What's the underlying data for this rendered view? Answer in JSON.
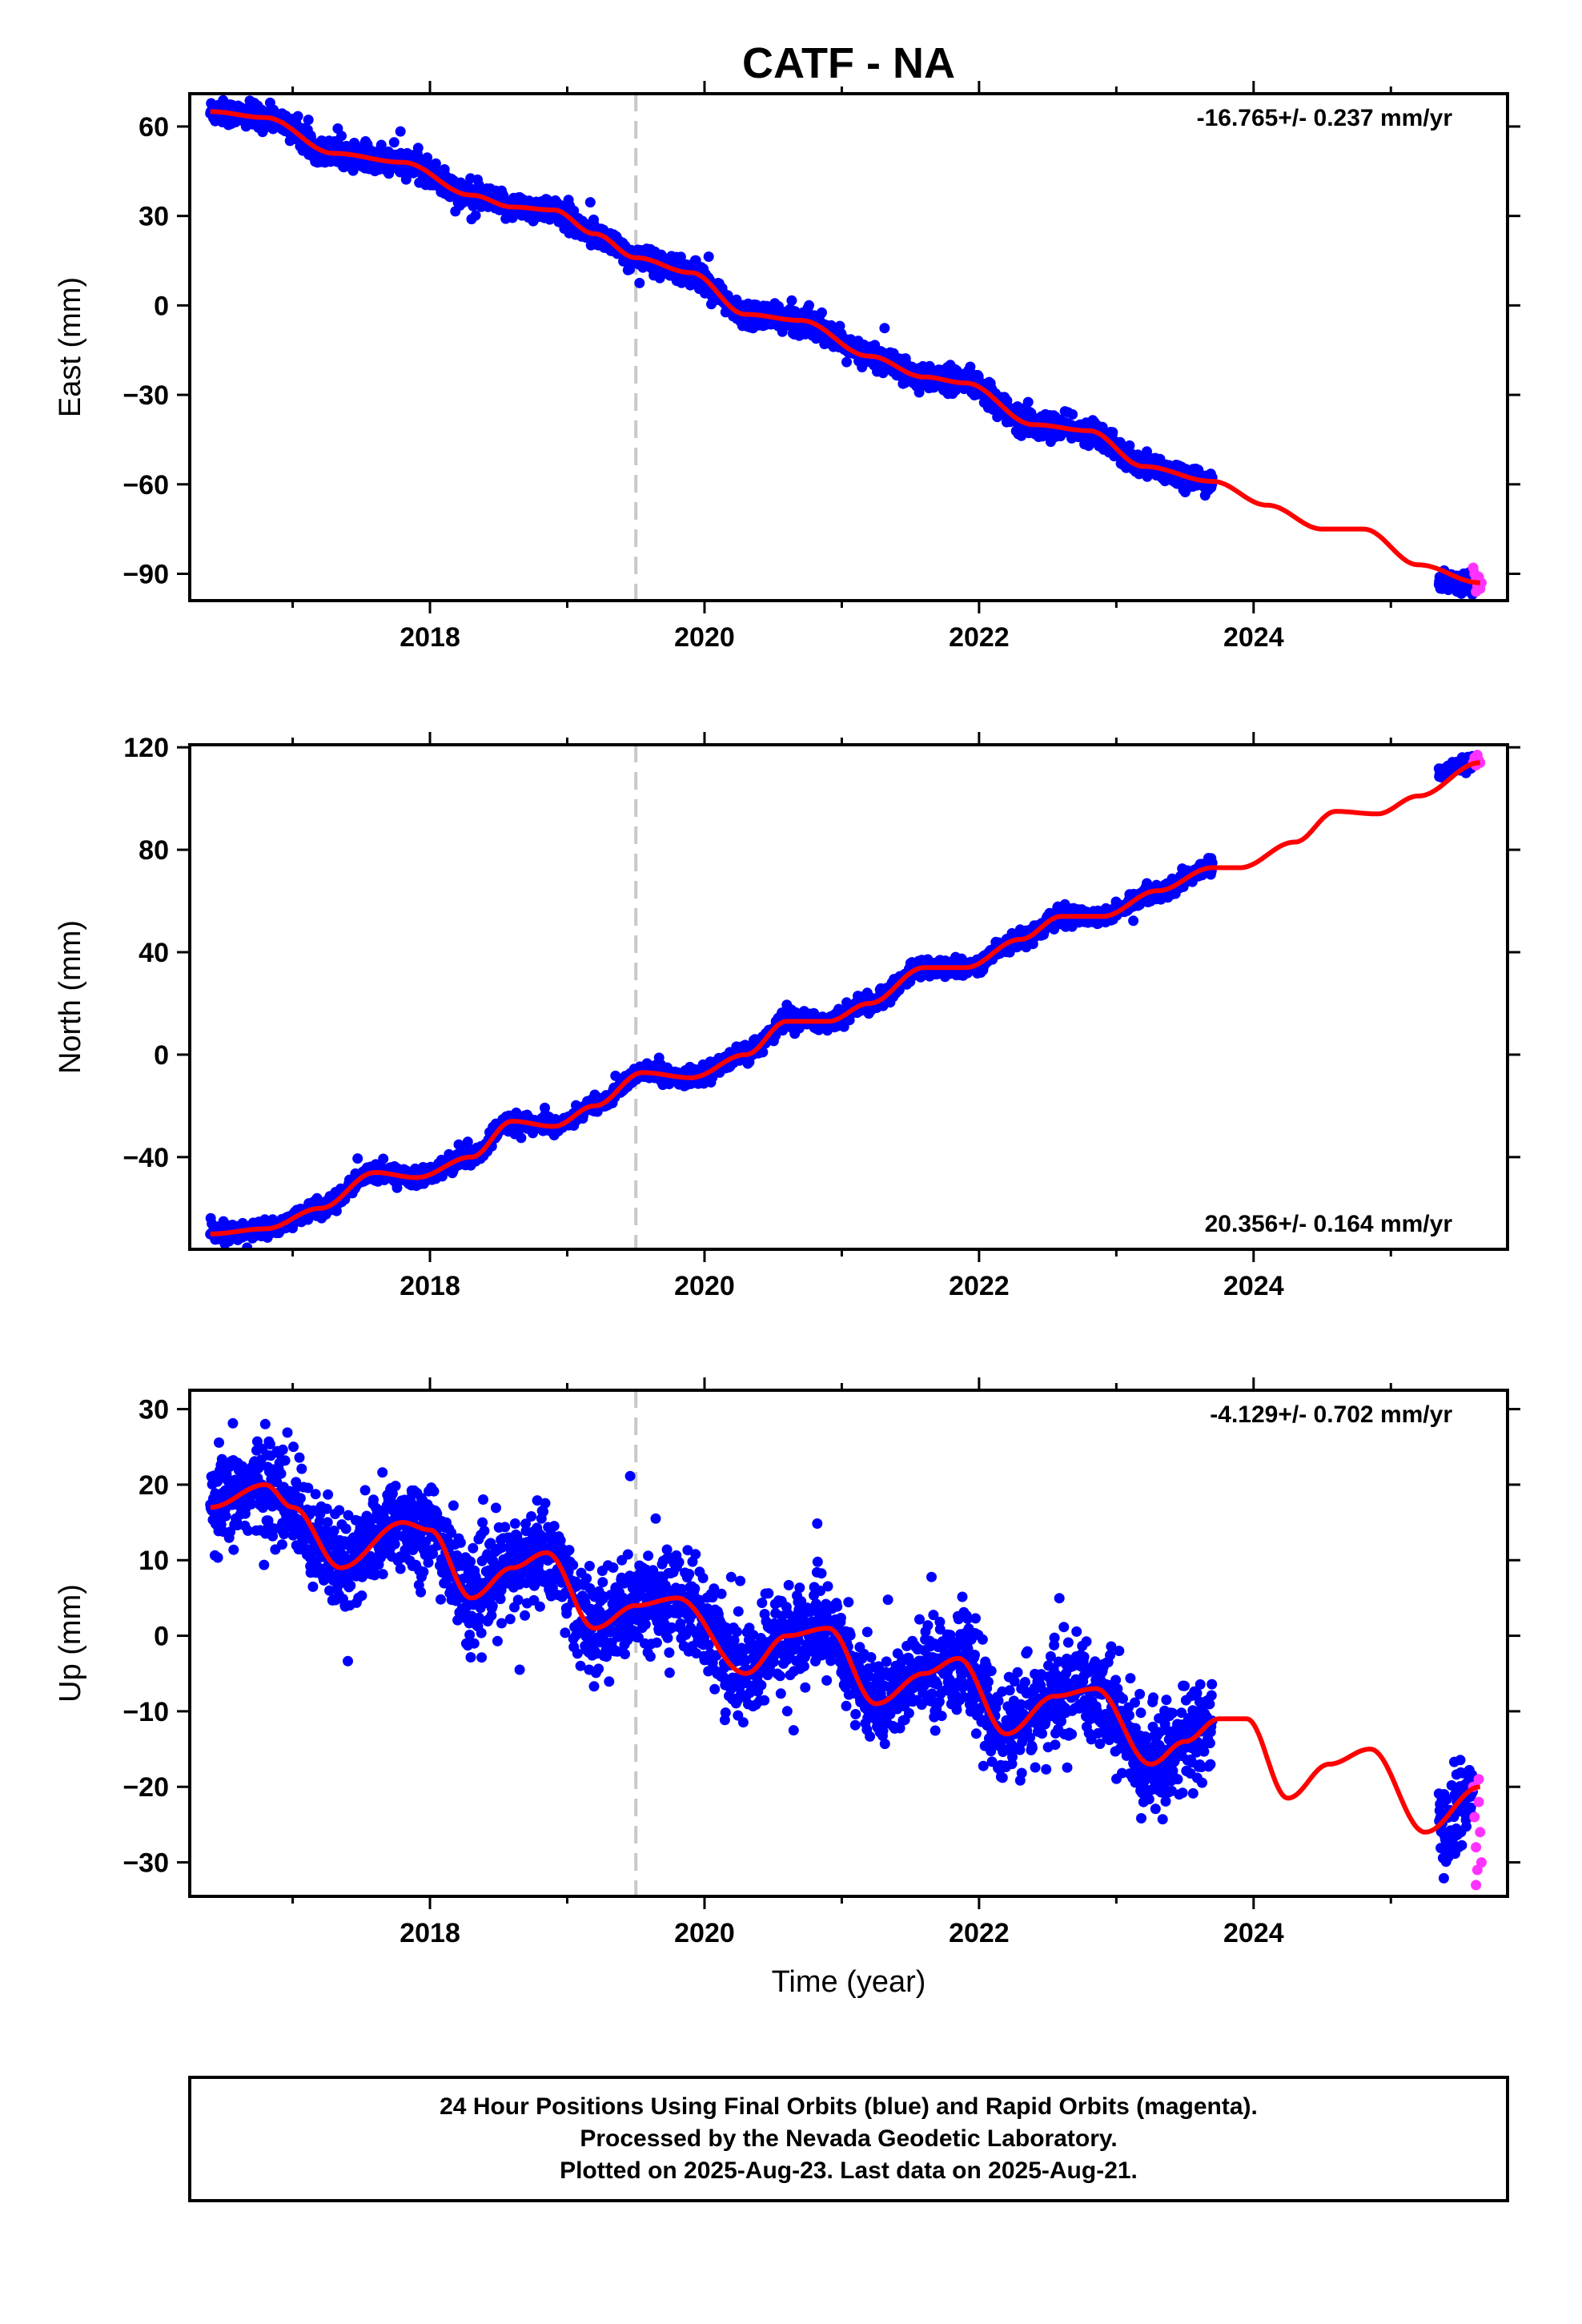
{
  "title": "CATF - NA",
  "colors": {
    "final_orbits": "#0000ff",
    "rapid_orbits": "#ff33ff",
    "model": "#ff0000",
    "break_line": "#c8c8c8",
    "frame": "#000000"
  },
  "x_tick_labels": [
    "2018",
    "2020",
    "2022",
    "2024"
  ],
  "xlabel": "Time (year)",
  "footer": {
    "line1": "24 Hour Positions Using Final Orbits (blue) and Rapid Orbits (magenta).",
    "line2": "Processed by the Nevada Geodetic Laboratory.",
    "line3": "Plotted on 2025-Aug-23. Last data on 2025-Aug-21."
  },
  "chart_data": [
    {
      "type": "scatter",
      "component": "east",
      "ylabel": "East (mm)",
      "ylim": [
        -99,
        71
      ],
      "xlim": [
        2016.25,
        2025.85
      ],
      "yticks": [
        60,
        30,
        0,
        -30,
        -60,
        -90
      ],
      "rate_text": "-16.765+/- 0.237 mm/yr",
      "rate_position": "top-right",
      "equipment_change_year": 2019.5,
      "series": [
        {
          "kind": "final_orbits_daily",
          "x_range": [
            2016.4,
            2023.7
          ],
          "key_points": [
            [
              2016.4,
              65
            ],
            [
              2016.8,
              63
            ],
            [
              2017.3,
              51
            ],
            [
              2017.8,
              48
            ],
            [
              2018.3,
              37
            ],
            [
              2018.6,
              33
            ],
            [
              2018.9,
              32
            ],
            [
              2019.2,
              24
            ],
            [
              2019.5,
              16
            ],
            [
              2019.9,
              11
            ],
            [
              2020.3,
              -3
            ],
            [
              2020.7,
              -5
            ],
            [
              2021.2,
              -17
            ],
            [
              2021.6,
              -24
            ],
            [
              2021.9,
              -26
            ],
            [
              2022.4,
              -40
            ],
            [
              2022.8,
              -42
            ],
            [
              2023.2,
              -54
            ],
            [
              2023.7,
              -59
            ]
          ],
          "scatter_mm": 2.0
        },
        {
          "kind": "final_orbits_daily",
          "x_range": [
            2025.35,
            2025.6
          ],
          "key_points": [
            [
              2025.35,
              -93
            ],
            [
              2025.6,
              -93
            ]
          ],
          "scatter_mm": 1.5
        },
        {
          "kind": "rapid_orbits_daily",
          "points": [
            [
              2025.6,
              -88
            ],
            [
              2025.61,
              -90
            ],
            [
              2025.62,
              -92
            ],
            [
              2025.63,
              -94
            ],
            [
              2025.64,
              -91
            ],
            [
              2025.65,
              -95
            ],
            [
              2025.66,
              -93
            ],
            [
              2025.62,
              -96
            ]
          ]
        },
        {
          "kind": "model",
          "points": [
            [
              2016.4,
              65
            ],
            [
              2016.8,
              63
            ],
            [
              2017.3,
              51
            ],
            [
              2017.8,
              48
            ],
            [
              2018.3,
              37
            ],
            [
              2018.6,
              33
            ],
            [
              2018.9,
              32
            ],
            [
              2019.2,
              24
            ],
            [
              2019.5,
              16
            ],
            [
              2019.9,
              11
            ],
            [
              2020.3,
              -3
            ],
            [
              2020.7,
              -5
            ],
            [
              2021.2,
              -17
            ],
            [
              2021.6,
              -24
            ],
            [
              2021.9,
              -26
            ],
            [
              2022.4,
              -40
            ],
            [
              2022.8,
              -42
            ],
            [
              2023.2,
              -54
            ],
            [
              2023.7,
              -59
            ],
            [
              2024.1,
              -67
            ],
            [
              2024.5,
              -75
            ],
            [
              2024.8,
              -75
            ],
            [
              2025.2,
              -87
            ],
            [
              2025.65,
              -93
            ]
          ]
        }
      ]
    },
    {
      "type": "scatter",
      "component": "north",
      "ylabel": "North (mm)",
      "ylim": [
        -76,
        121
      ],
      "xlim": [
        2016.25,
        2025.85
      ],
      "yticks": [
        120,
        80,
        40,
        0,
        -40
      ],
      "rate_text": "20.356+/- 0.164 mm/yr",
      "rate_position": "bottom-right",
      "equipment_change_year": 2019.5,
      "series": [
        {
          "kind": "final_orbits_daily",
          "x_range": [
            2016.4,
            2023.7
          ],
          "key_points": [
            [
              2016.4,
              -70
            ],
            [
              2016.8,
              -68
            ],
            [
              2017.2,
              -60
            ],
            [
              2017.6,
              -46
            ],
            [
              2017.9,
              -48
            ],
            [
              2018.3,
              -40
            ],
            [
              2018.6,
              -26
            ],
            [
              2018.9,
              -28
            ],
            [
              2019.2,
              -20
            ],
            [
              2019.55,
              -7
            ],
            [
              2019.9,
              -9
            ],
            [
              2020.3,
              0
            ],
            [
              2020.6,
              13
            ],
            [
              2020.9,
              13
            ],
            [
              2021.2,
              20
            ],
            [
              2021.6,
              34
            ],
            [
              2021.9,
              34
            ],
            [
              2022.3,
              45
            ],
            [
              2022.6,
              54
            ],
            [
              2022.9,
              54
            ],
            [
              2023.3,
              64
            ],
            [
              2023.7,
              73
            ]
          ],
          "scatter_mm": 1.6
        },
        {
          "kind": "final_orbits_daily",
          "x_range": [
            2025.35,
            2025.6
          ],
          "key_points": [
            [
              2025.35,
              110
            ],
            [
              2025.6,
              114
            ]
          ],
          "scatter_mm": 1.2
        },
        {
          "kind": "rapid_orbits_daily",
          "points": [
            [
              2025.6,
              114
            ],
            [
              2025.61,
              116
            ],
            [
              2025.62,
              113
            ],
            [
              2025.63,
              117
            ],
            [
              2025.64,
              115
            ],
            [
              2025.65,
              114
            ]
          ]
        },
        {
          "kind": "model",
          "points": [
            [
              2016.4,
              -70
            ],
            [
              2016.8,
              -68
            ],
            [
              2017.2,
              -60
            ],
            [
              2017.6,
              -46
            ],
            [
              2017.9,
              -48
            ],
            [
              2018.3,
              -40
            ],
            [
              2018.6,
              -26
            ],
            [
              2018.9,
              -28
            ],
            [
              2019.2,
              -20
            ],
            [
              2019.55,
              -7
            ],
            [
              2019.9,
              -9
            ],
            [
              2020.3,
              0
            ],
            [
              2020.6,
              13
            ],
            [
              2020.9,
              13
            ],
            [
              2021.2,
              20
            ],
            [
              2021.6,
              34
            ],
            [
              2021.9,
              34
            ],
            [
              2022.3,
              45
            ],
            [
              2022.6,
              54
            ],
            [
              2022.9,
              54
            ],
            [
              2023.3,
              64
            ],
            [
              2023.7,
              73
            ],
            [
              2023.9,
              73
            ],
            [
              2024.3,
              83
            ],
            [
              2024.6,
              95
            ],
            [
              2024.9,
              94
            ],
            [
              2025.2,
              101
            ],
            [
              2025.65,
              114
            ]
          ]
        }
      ]
    },
    {
      "type": "scatter",
      "component": "up",
      "ylabel": "Up (mm)",
      "ylim": [
        -34.5,
        32.5
      ],
      "xlim": [
        2016.25,
        2025.85
      ],
      "yticks": [
        30,
        20,
        10,
        0,
        -10,
        -20,
        -30
      ],
      "rate_text": "-4.129+/- 0.702 mm/yr",
      "rate_position": "top-right",
      "equipment_change_year": 2019.5,
      "series": [
        {
          "kind": "final_orbits_daily",
          "x_range": [
            2016.4,
            2023.7
          ],
          "key_points": [
            [
              2016.4,
              17
            ],
            [
              2016.8,
              20
            ],
            [
              2017.0,
              17
            ],
            [
              2017.35,
              9
            ],
            [
              2017.8,
              15
            ],
            [
              2018.0,
              14
            ],
            [
              2018.3,
              5
            ],
            [
              2018.6,
              9
            ],
            [
              2018.85,
              11
            ],
            [
              2019.2,
              1
            ],
            [
              2019.5,
              4
            ],
            [
              2019.8,
              5
            ],
            [
              2020.3,
              -5
            ],
            [
              2020.6,
              0
            ],
            [
              2020.9,
              1
            ],
            [
              2021.25,
              -9
            ],
            [
              2021.6,
              -5
            ],
            [
              2021.85,
              -3
            ],
            [
              2022.2,
              -13
            ],
            [
              2022.55,
              -8
            ],
            [
              2022.85,
              -7
            ],
            [
              2023.25,
              -17
            ],
            [
              2023.5,
              -14
            ],
            [
              2023.7,
              -12
            ]
          ],
          "scatter_mm": 3.2
        },
        {
          "kind": "final_orbits_daily",
          "x_range": [
            2025.35,
            2025.6
          ],
          "key_points": [
            [
              2025.35,
              -26
            ],
            [
              2025.6,
              -21
            ]
          ],
          "scatter_mm": 2.8
        },
        {
          "kind": "rapid_orbits_daily",
          "points": [
            [
              2025.6,
              -20
            ],
            [
              2025.61,
              -24
            ],
            [
              2025.62,
              -28
            ],
            [
              2025.63,
              -31
            ],
            [
              2025.64,
              -22
            ],
            [
              2025.65,
              -26
            ],
            [
              2025.66,
              -30
            ],
            [
              2025.62,
              -33
            ],
            [
              2025.64,
              -19
            ]
          ]
        },
        {
          "kind": "model",
          "points": [
            [
              2016.4,
              17
            ],
            [
              2016.8,
              20
            ],
            [
              2017.0,
              17
            ],
            [
              2017.35,
              9
            ],
            [
              2017.8,
              15
            ],
            [
              2018.0,
              14
            ],
            [
              2018.3,
              5
            ],
            [
              2018.6,
              9
            ],
            [
              2018.85,
              11
            ],
            [
              2019.2,
              1
            ],
            [
              2019.5,
              4
            ],
            [
              2019.8,
              5
            ],
            [
              2020.3,
              -5
            ],
            [
              2020.6,
              0
            ],
            [
              2020.9,
              1
            ],
            [
              2021.25,
              -9
            ],
            [
              2021.6,
              -5
            ],
            [
              2021.85,
              -3
            ],
            [
              2022.2,
              -13
            ],
            [
              2022.55,
              -8
            ],
            [
              2022.85,
              -7
            ],
            [
              2023.25,
              -17
            ],
            [
              2023.5,
              -14
            ],
            [
              2023.75,
              -11
            ],
            [
              2023.95,
              -11
            ],
            [
              2024.25,
              -21.5
            ],
            [
              2024.55,
              -17
            ],
            [
              2024.85,
              -15
            ],
            [
              2025.25,
              -26
            ],
            [
              2025.65,
              -20
            ]
          ]
        }
      ]
    }
  ]
}
